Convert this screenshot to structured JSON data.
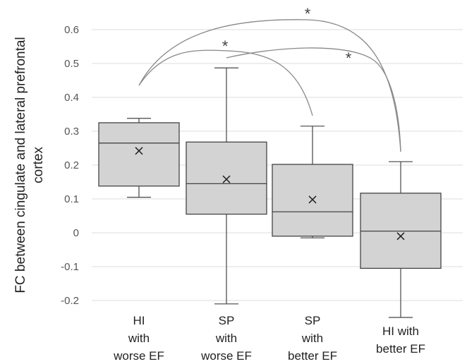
{
  "chart_data": {
    "type": "box",
    "ylabel": [
      "FC between cingulate and lateral prefrontal",
      "cortex"
    ],
    "ylim": [
      -0.22,
      0.62
    ],
    "yticks": [
      -0.2,
      -0.1,
      0,
      0.1,
      0.2,
      0.3,
      0.4,
      0.5,
      0.6
    ],
    "ytick_labels": [
      "-0.2",
      "-0.1",
      "0",
      "0.1",
      "0.2",
      "0.3",
      "0.4",
      "0.5",
      "0.6"
    ],
    "grid": "horizontal",
    "categories": [
      [
        "HI",
        "with",
        "worse EF"
      ],
      [
        "SP",
        "with",
        "worse EF"
      ],
      [
        "SP",
        "with",
        "better EF"
      ],
      [
        "HI with",
        "better EF"
      ]
    ],
    "boxes": [
      {
        "whisker_low": 0.105,
        "q1": 0.138,
        "median": 0.265,
        "q3": 0.325,
        "whisker_high": 0.338,
        "mean": 0.242
      },
      {
        "whisker_low": -0.21,
        "q1": 0.055,
        "median": 0.145,
        "q3": 0.268,
        "whisker_high": 0.487,
        "mean": 0.158
      },
      {
        "whisker_low": -0.015,
        "q1": -0.01,
        "median": 0.062,
        "q3": 0.202,
        "whisker_high": 0.315,
        "mean": 0.098
      },
      {
        "whisker_low": -0.25,
        "q1": -0.105,
        "median": 0.005,
        "q3": 0.117,
        "whisker_high": 0.21,
        "mean": -0.01
      }
    ],
    "box_color": "#d3d3d3",
    "significance": [
      {
        "from": 0,
        "to": 2,
        "label": "*"
      },
      {
        "from": 0,
        "to": 3,
        "label": "*"
      },
      {
        "from": 1,
        "to": 3,
        "label": "*"
      }
    ]
  }
}
